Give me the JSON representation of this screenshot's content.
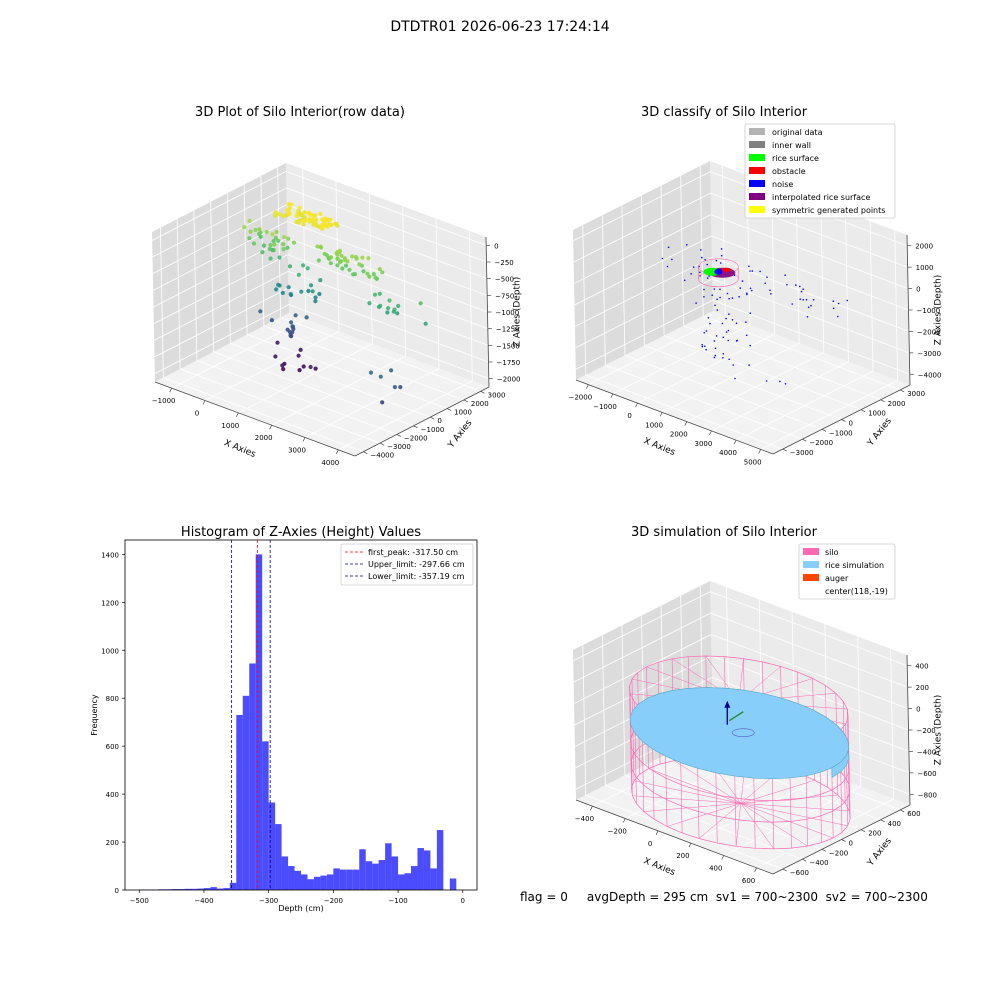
{
  "suptitle": "DTDTR01 2026-06-23 17:24:14",
  "status_line": "flag = 0     avgDepth = 295 cm  sv1 = 700~2300  sv2 = 700~2300",
  "colors": {
    "pane": "#ebebeb",
    "pane_dark": "#dcdcdc",
    "grid": "#ffffff",
    "hist_bar": "#0000ff",
    "first_peak": "#ff0000",
    "limit": "#00008b",
    "silo": "#ff69b4",
    "rice": "#87cefa",
    "auger": "#ff4500"
  },
  "chart_data": [
    {
      "type": "scatter",
      "title": "3D Plot of Silo Interior(row data)",
      "xlabel": "X Axies",
      "ylabel": "Y Axies",
      "zlabel": "Z Axies (Depth)",
      "x_ticks": [
        "−1000",
        "0",
        "1000",
        "2000",
        "3000",
        "4000"
      ],
      "y_ticks": [
        "−4000",
        "−3000",
        "−2000",
        "−1000",
        "0",
        "1000",
        "2000",
        "3000"
      ],
      "z_ticks": [
        "0",
        "−250",
        "−500",
        "−750",
        "−1000",
        "−1250",
        "−1500",
        "−1750",
        "−2000"
      ],
      "xlim": [
        -1200,
        4200
      ],
      "ylim": [
        -4000,
        3500
      ],
      "zlim": [
        -2150,
        150
      ],
      "colormap": "viridis",
      "groups": [
        {
          "x0": -300,
          "x1": 1100,
          "y0": 900,
          "y1": 1800,
          "z0": -100,
          "z1": 0,
          "n": 70
        },
        {
          "x0": -900,
          "x1": 300,
          "y0": 300,
          "y1": 1300,
          "z0": -650,
          "z1": -250,
          "n": 30
        },
        {
          "x0": 800,
          "x1": 2500,
          "y0": 700,
          "y1": 1300,
          "z0": -550,
          "z1": -300,
          "n": 45
        },
        {
          "x0": 2400,
          "x1": 3900,
          "y0": 400,
          "y1": 1000,
          "z0": -900,
          "z1": -550,
          "n": 14
        },
        {
          "x0": 3500,
          "x1": 4100,
          "y0": -2000,
          "y1": -800,
          "z0": -1900,
          "z1": -1300,
          "n": 6
        },
        {
          "x0": -200,
          "x1": 900,
          "y0": 200,
          "y1": 1300,
          "z0": -1250,
          "z1": -700,
          "n": 20
        },
        {
          "x0": -400,
          "x1": 700,
          "y0": -200,
          "y1": 800,
          "z0": -2000,
          "z1": -1400,
          "n": 16
        },
        {
          "x0": 300,
          "x1": 1300,
          "y0": -900,
          "y1": 0,
          "z0": -2100,
          "z1": -1900,
          "n": 8
        }
      ]
    },
    {
      "type": "scatter",
      "title": "3D classify of Silo Interior",
      "xlabel": "X Axies",
      "ylabel": "Y Axies",
      "zlabel": "Z Axies (Depth)",
      "x_ticks": [
        "−2000",
        "−1000",
        "0",
        "1000",
        "2000",
        "3000",
        "4000",
        "5000"
      ],
      "y_ticks": [
        "−3000",
        "−2000",
        "−1000",
        "0",
        "1000",
        "2000",
        "3000"
      ],
      "z_ticks": [
        "2000",
        "1000",
        "0",
        "−1000",
        "−2000",
        "−3000",
        "−4000"
      ],
      "xlim": [
        -2200,
        5200
      ],
      "ylim": [
        -3500,
        3500
      ],
      "zlim": [
        -4300,
        2300
      ],
      "legend": [
        {
          "label": "original data",
          "color": "#b3b3b3"
        },
        {
          "label": "inner wall",
          "color": "#808080"
        },
        {
          "label": "rice surface",
          "color": "#00ff00"
        },
        {
          "label": "obstacle",
          "color": "#ff0000"
        },
        {
          "label": "noise",
          "color": "#0000ff"
        },
        {
          "label": "interpolated rice surface",
          "color": "#800080"
        },
        {
          "label": "symmetric generated points",
          "color": "#ffff00"
        }
      ],
      "legend_loc": "upper right",
      "groups": [
        {
          "x0": -1500,
          "x1": 4800,
          "y0": -800,
          "y1": 1800,
          "z0": -400,
          "z1": 200,
          "n": 60
        },
        {
          "x0": -200,
          "x1": 1200,
          "y0": -500,
          "y1": 1300,
          "z0": -4000,
          "z1": -1000,
          "n": 40
        },
        {
          "x0": 2000,
          "x1": 4800,
          "y0": -2500,
          "y1": -500,
          "z0": -3500,
          "z1": -1200,
          "n": 6
        }
      ]
    },
    {
      "type": "bar",
      "title": "Histogram of Z-Axies (Height) Values",
      "xlabel": "Depth (cm)",
      "ylabel": "Frequency",
      "xlim": [
        -522,
        22
      ],
      "ylim": [
        0,
        1460
      ],
      "x_ticks": [
        -500,
        -400,
        -300,
        -200,
        -100,
        0
      ],
      "y_ticks": [
        0,
        200,
        400,
        600,
        800,
        1000,
        1200,
        1400
      ],
      "bin_width": 10,
      "bin_starts": [
        -500,
        -490,
        -480,
        -470,
        -460,
        -450,
        -440,
        -430,
        -420,
        -410,
        -400,
        -390,
        -380,
        -370,
        -360,
        -350,
        -340,
        -330,
        -320,
        -310,
        -300,
        -290,
        -280,
        -270,
        -260,
        -250,
        -240,
        -230,
        -220,
        -210,
        -200,
        -190,
        -180,
        -170,
        -160,
        -150,
        -140,
        -130,
        -120,
        -110,
        -100,
        -90,
        -80,
        -70,
        -60,
        -50,
        -40,
        -30,
        -20,
        -10,
        0
      ],
      "counts": [
        2,
        2,
        2,
        3,
        3,
        4,
        4,
        5,
        5,
        6,
        8,
        12,
        6,
        8,
        30,
        730,
        810,
        945,
        1400,
        620,
        365,
        275,
        140,
        100,
        80,
        65,
        45,
        55,
        60,
        65,
        90,
        85,
        85,
        85,
        170,
        120,
        110,
        125,
        195,
        140,
        65,
        70,
        100,
        175,
        165,
        90,
        250,
        0,
        48,
        0,
        0
      ],
      "lines": [
        {
          "label": "first_peak: -317.50 cm",
          "x": -317.5,
          "color": "#ff0000"
        },
        {
          "label": "Upper_limit: -297.66 cm",
          "x": -297.66,
          "color": "#00008b"
        },
        {
          "label": "Lower_limit: -357.19 cm",
          "x": -357.19,
          "color": "#00008b"
        }
      ],
      "legend_loc": "upper right"
    },
    {
      "type": "area",
      "title": "3D simulation of Silo Interior",
      "xlabel": "X Axies",
      "ylabel": "Y Axies",
      "zlabel": "Z Axies (Depth)",
      "x_ticks": [
        "−400",
        "−200",
        "0",
        "200",
        "400",
        "600"
      ],
      "y_ticks": [
        "−600",
        "−400",
        "−200",
        "0",
        "200",
        "400",
        "600"
      ],
      "z_ticks": [
        "400",
        "200",
        "0",
        "−200",
        "−400",
        "−600",
        "−800"
      ],
      "xlim": [
        -520,
        760
      ],
      "ylim": [
        -700,
        700
      ],
      "zlim": [
        -950,
        450
      ],
      "silo": {
        "cx": 118,
        "cy": -19,
        "radius": 600,
        "z_top": 0,
        "z_bottom": -950
      },
      "rice_surface_depth": -295,
      "legend": [
        {
          "label": "silo",
          "color": "#ff69b4"
        },
        {
          "label": "rice simulation",
          "color": "#87cefa"
        },
        {
          "label": "auger",
          "color": "#ff4500"
        },
        {
          "label": "center(118,-19)",
          "color": ""
        }
      ],
      "legend_loc": "upper right"
    }
  ]
}
